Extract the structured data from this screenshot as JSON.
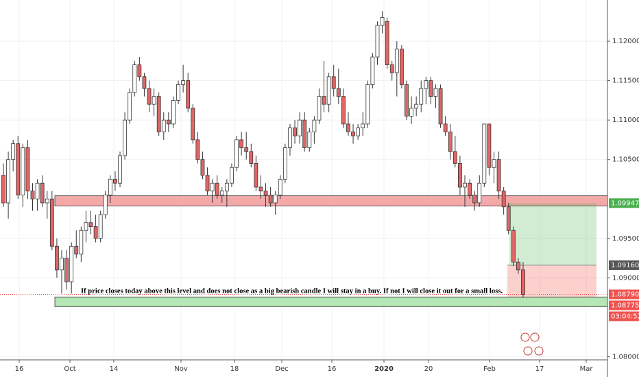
{
  "chart_data": {
    "type": "candlestick",
    "ohlc": [
      [
        1.103,
        1.1045,
        1.099,
        1.0995
      ],
      [
        1.0995,
        1.106,
        1.0975,
        1.105
      ],
      [
        1.105,
        1.1075,
        1.1035,
        1.107
      ],
      [
        1.107,
        1.108,
        1.1,
        1.1005
      ],
      [
        1.1005,
        1.107,
        1.099,
        1.1065
      ],
      [
        1.1065,
        1.1075,
        1.1,
        1.101
      ],
      [
        1.101,
        1.102,
        1.0985,
        1.1
      ],
      [
        1.1,
        1.1025,
        1.0985,
        1.102
      ],
      [
        1.102,
        1.103,
        1.099,
        1.0995
      ],
      [
        1.0995,
        1.101,
        1.0975,
        1.1
      ],
      [
        1.1,
        1.101,
        1.0935,
        1.094
      ],
      [
        1.094,
        1.095,
        1.09,
        1.091
      ],
      [
        1.091,
        1.0935,
        1.088,
        1.0925
      ],
      [
        1.0925,
        1.0935,
        1.0885,
        1.0895
      ],
      [
        1.0895,
        1.0945,
        1.088,
        1.094
      ],
      [
        1.094,
        1.096,
        1.0925,
        1.093
      ],
      [
        1.093,
        1.0965,
        1.092,
        1.096
      ],
      [
        1.096,
        1.0985,
        1.0945,
        1.097
      ],
      [
        1.097,
        1.0985,
        1.0955,
        1.0965
      ],
      [
        1.0965,
        1.098,
        1.0945,
        1.095
      ],
      [
        1.095,
        1.0985,
        1.0945,
        1.098
      ],
      [
        1.098,
        1.101,
        1.0975,
        1.1005
      ],
      [
        1.1005,
        1.103,
        1.0995,
        1.1025
      ],
      [
        1.1025,
        1.1035,
        1.101,
        1.102
      ],
      [
        1.102,
        1.106,
        1.1015,
        1.1055
      ],
      [
        1.1055,
        1.111,
        1.105,
        1.11
      ],
      [
        1.11,
        1.114,
        1.1095,
        1.1135
      ],
      [
        1.1135,
        1.1175,
        1.113,
        1.117
      ],
      [
        1.117,
        1.118,
        1.115,
        1.1155
      ],
      [
        1.1155,
        1.116,
        1.113,
        1.114
      ],
      [
        1.114,
        1.115,
        1.111,
        1.112
      ],
      [
        1.112,
        1.114,
        1.1105,
        1.113
      ],
      [
        1.113,
        1.1135,
        1.108,
        1.1085
      ],
      [
        1.1085,
        1.111,
        1.1075,
        1.11
      ],
      [
        1.11,
        1.111,
        1.1085,
        1.1095
      ],
      [
        1.1095,
        1.113,
        1.109,
        1.1125
      ],
      [
        1.1125,
        1.115,
        1.112,
        1.1145
      ],
      [
        1.1145,
        1.117,
        1.1135,
        1.115
      ],
      [
        1.115,
        1.116,
        1.111,
        1.1115
      ],
      [
        1.1115,
        1.112,
        1.107,
        1.1075
      ],
      [
        1.1075,
        1.1085,
        1.1045,
        1.105
      ],
      [
        1.105,
        1.106,
        1.1025,
        1.103
      ],
      [
        1.103,
        1.104,
        1.1005,
        1.101
      ],
      [
        1.101,
        1.1025,
        1.0995,
        1.102
      ],
      [
        1.102,
        1.103,
        1.1,
        1.1005
      ],
      [
        1.1005,
        1.1015,
        1.0995,
        1.101
      ],
      [
        1.101,
        1.1025,
        1.099,
        1.102
      ],
      [
        1.102,
        1.1045,
        1.1015,
        1.104
      ],
      [
        1.104,
        1.108,
        1.1035,
        1.1075
      ],
      [
        1.1075,
        1.1085,
        1.1055,
        1.1065
      ],
      [
        1.1065,
        1.1085,
        1.105,
        1.106
      ],
      [
        1.106,
        1.107,
        1.104,
        1.1045
      ],
      [
        1.1045,
        1.1055,
        1.101,
        1.1015
      ],
      [
        1.1015,
        1.103,
        1.1,
        1.101
      ],
      [
        1.101,
        1.102,
        1.099,
        1.1005
      ],
      [
        1.1005,
        1.1015,
        1.099,
        1.0995
      ],
      [
        1.0995,
        1.101,
        1.098,
        1.1005
      ],
      [
        1.1005,
        1.103,
        1.1,
        1.1025
      ],
      [
        1.1025,
        1.107,
        1.102,
        1.1065
      ],
      [
        1.1065,
        1.1095,
        1.1055,
        1.109
      ],
      [
        1.109,
        1.11,
        1.107,
        1.108
      ],
      [
        1.108,
        1.111,
        1.107,
        1.11
      ],
      [
        1.11,
        1.111,
        1.106,
        1.1065
      ],
      [
        1.1065,
        1.109,
        1.106,
        1.1085
      ],
      [
        1.1085,
        1.1105,
        1.107,
        1.11
      ],
      [
        1.11,
        1.114,
        1.1095,
        1.113
      ],
      [
        1.113,
        1.1175,
        1.111,
        1.112
      ],
      [
        1.112,
        1.116,
        1.111,
        1.1155
      ],
      [
        1.1155,
        1.117,
        1.113,
        1.114
      ],
      [
        1.114,
        1.1165,
        1.112,
        1.113
      ],
      [
        1.113,
        1.114,
        1.109,
        1.1095
      ],
      [
        1.1095,
        1.111,
        1.108,
        1.1085
      ],
      [
        1.1085,
        1.1095,
        1.107,
        1.108
      ],
      [
        1.108,
        1.1095,
        1.1075,
        1.109
      ],
      [
        1.109,
        1.111,
        1.108,
        1.1095
      ],
      [
        1.1095,
        1.115,
        1.109,
        1.1145
      ],
      [
        1.1145,
        1.1185,
        1.114,
        1.118
      ],
      [
        1.118,
        1.1225,
        1.117,
        1.122
      ],
      [
        1.122,
        1.1238,
        1.121,
        1.123
      ],
      [
        1.1225,
        1.123,
        1.1165,
        1.117
      ],
      [
        1.117,
        1.1175,
        1.115,
        1.116
      ],
      [
        1.116,
        1.12,
        1.113,
        1.119
      ],
      [
        1.119,
        1.1195,
        1.114,
        1.1145
      ],
      [
        1.1145,
        1.115,
        1.11,
        1.1105
      ],
      [
        1.1105,
        1.113,
        1.1095,
        1.1115
      ],
      [
        1.1115,
        1.113,
        1.1105,
        1.112
      ],
      [
        1.112,
        1.115,
        1.111,
        1.114
      ],
      [
        1.114,
        1.1155,
        1.112,
        1.115
      ],
      [
        1.115,
        1.1155,
        1.112,
        1.113
      ],
      [
        1.113,
        1.1145,
        1.1115,
        1.114
      ],
      [
        1.114,
        1.1145,
        1.109,
        1.1095
      ],
      [
        1.1095,
        1.1105,
        1.108,
        1.1085
      ],
      [
        1.1085,
        1.1095,
        1.105,
        1.106
      ],
      [
        1.106,
        1.108,
        1.104,
        1.1045
      ],
      [
        1.1045,
        1.1055,
        1.1005,
        1.1015
      ],
      [
        1.1015,
        1.103,
        1.099,
        1.102
      ],
      [
        1.102,
        1.1025,
        1.1,
        1.1005
      ],
      [
        1.1005,
        1.101,
        1.0985,
        1.0995
      ],
      [
        1.0995,
        1.103,
        1.099,
        1.102
      ],
      [
        1.102,
        1.1095,
        1.1015,
        1.1095
      ],
      [
        1.1095,
        1.1095,
        1.103,
        1.104
      ],
      [
        1.104,
        1.106,
        1.102,
        1.105
      ],
      [
        1.105,
        1.106,
        1.1,
        1.101
      ],
      [
        1.101,
        1.1015,
        1.098,
        1.099
      ],
      [
        1.099,
        1.0995,
        1.0955,
        1.096
      ],
      [
        1.096,
        1.0965,
        1.0915,
        1.092
      ],
      [
        1.092,
        1.0925,
        1.0905,
        1.091
      ],
      [
        1.091,
        1.092,
        1.0875,
        1.0879
      ]
    ],
    "up_color": "#ffffff",
    "down_color": "#e06666",
    "ylim": [
      1.0796,
      1.12522
    ],
    "yticks": [
      {
        "value": 1.12,
        "label": "1.12000"
      },
      {
        "value": 1.115,
        "label": "1.11500"
      },
      {
        "value": 1.11,
        "label": "1.11000"
      },
      {
        "value": 1.105,
        "label": "1.10500"
      },
      {
        "value": 1.095,
        "label": "1.09500"
      },
      {
        "value": 1.09,
        "label": "1.09000"
      },
      {
        "value": 1.08,
        "label": "1.08000"
      }
    ],
    "xticks": [
      "16",
      "Oct",
      "14",
      "Nov",
      "18",
      "Dec",
      "16",
      "2020",
      "20",
      "Feb",
      "17",
      "Mar"
    ],
    "grid": true,
    "zones": [
      {
        "top": 1.1004,
        "bottom": 1.0991,
        "color": "#f4a9a9"
      },
      {
        "top": 1.08757,
        "bottom": 1.08635,
        "color": "#b5e6b5"
      }
    ],
    "position": {
      "target": 1.09947,
      "entry": {
        "value": 1.0916,
        "label": "1.09160"
      },
      "stop": 1.0876
    },
    "last_price": {
      "value": 1.0879,
      "label": "1.08790"
    },
    "bid": 1.08775,
    "countdown": "03:04:52",
    "annotation": "If price closes today above this level and does not close as a big bearish candle I will stay in a buy. If not I will close it out for a small loss."
  }
}
